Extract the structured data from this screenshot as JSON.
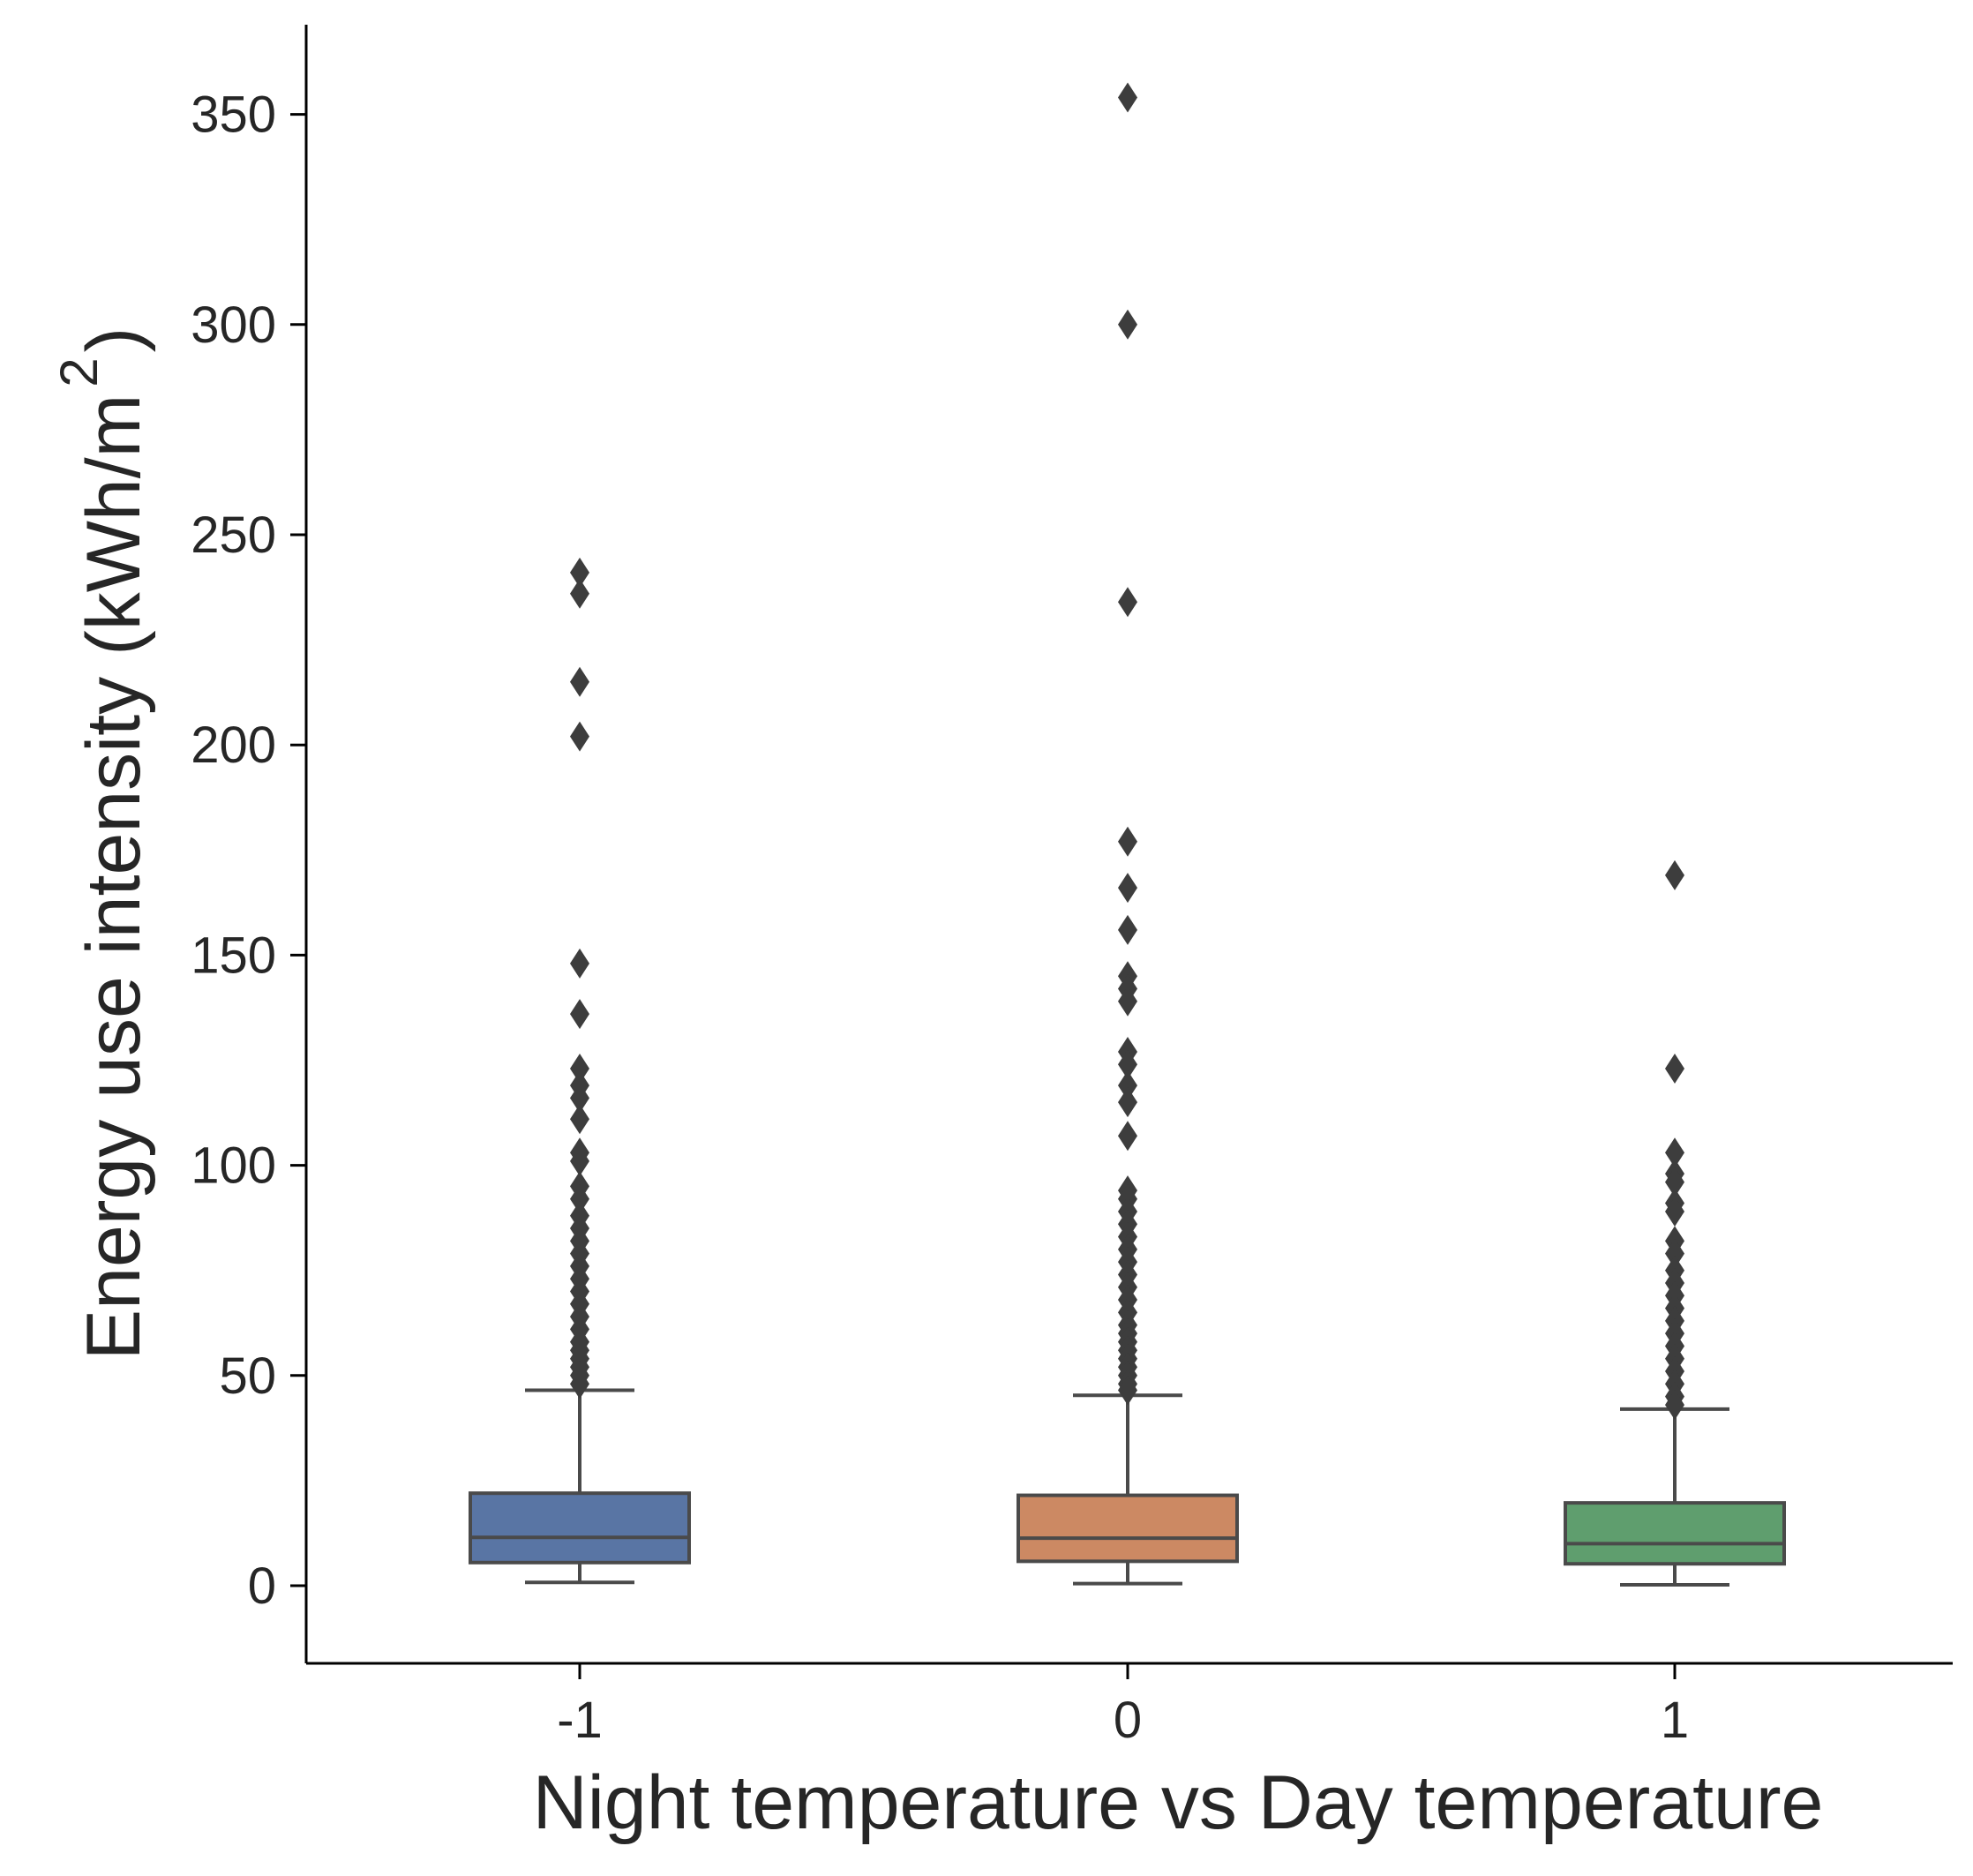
{
  "chart_data": {
    "type": "box",
    "title": "",
    "xlabel": "Night temperature vs Day temperature",
    "ylabel": "Energy use intensity (kWh/m",
    "ylabel_superscript": "2",
    "ylabel_close": ")",
    "categories": [
      "-1",
      "0",
      "1"
    ],
    "ylim": [
      -18,
      372
    ],
    "yticks": [
      0,
      50,
      100,
      150,
      200,
      250,
      300,
      350
    ],
    "ytick_labels": [
      "0",
      "50",
      "100",
      "150",
      "200",
      "250",
      "300",
      "350"
    ],
    "grid": false,
    "legend": "none",
    "boxes": [
      {
        "category": "-1",
        "color": "#5975a4",
        "whisker_low": 0.8,
        "q1": 5.5,
        "median": 11.5,
        "q3": 22,
        "whisker_high": 46.5,
        "outliers": [
          241,
          236,
          215,
          202,
          148,
          136,
          123,
          119,
          116,
          111,
          103,
          101,
          95,
          92,
          88,
          85,
          82,
          79,
          76,
          73,
          70,
          67,
          64,
          61,
          58,
          56,
          54,
          52,
          50,
          48
        ]
      },
      {
        "category": "0",
        "color": "#cc8963",
        "whisker_low": 0.5,
        "q1": 5.8,
        "median": 11.3,
        "q3": 21.5,
        "whisker_high": 45.3,
        "outliers": [
          354,
          300,
          234,
          177,
          166,
          156,
          145,
          142,
          139,
          127,
          124,
          119,
          115,
          107,
          94,
          92,
          89,
          86,
          83,
          80,
          77,
          74,
          71,
          68,
          65,
          62,
          60,
          58,
          56,
          54,
          52,
          50,
          48,
          46.5
        ]
      },
      {
        "category": "1",
        "color": "#5f9e6e",
        "whisker_low": 0.2,
        "q1": 5.2,
        "median": 10,
        "q3": 19.7,
        "whisker_high": 42,
        "outliers": [
          169,
          123,
          103,
          98,
          96,
          91,
          89,
          82,
          79,
          75,
          72,
          69,
          66,
          63,
          60,
          57,
          54,
          51,
          48,
          45,
          43
        ]
      }
    ]
  }
}
